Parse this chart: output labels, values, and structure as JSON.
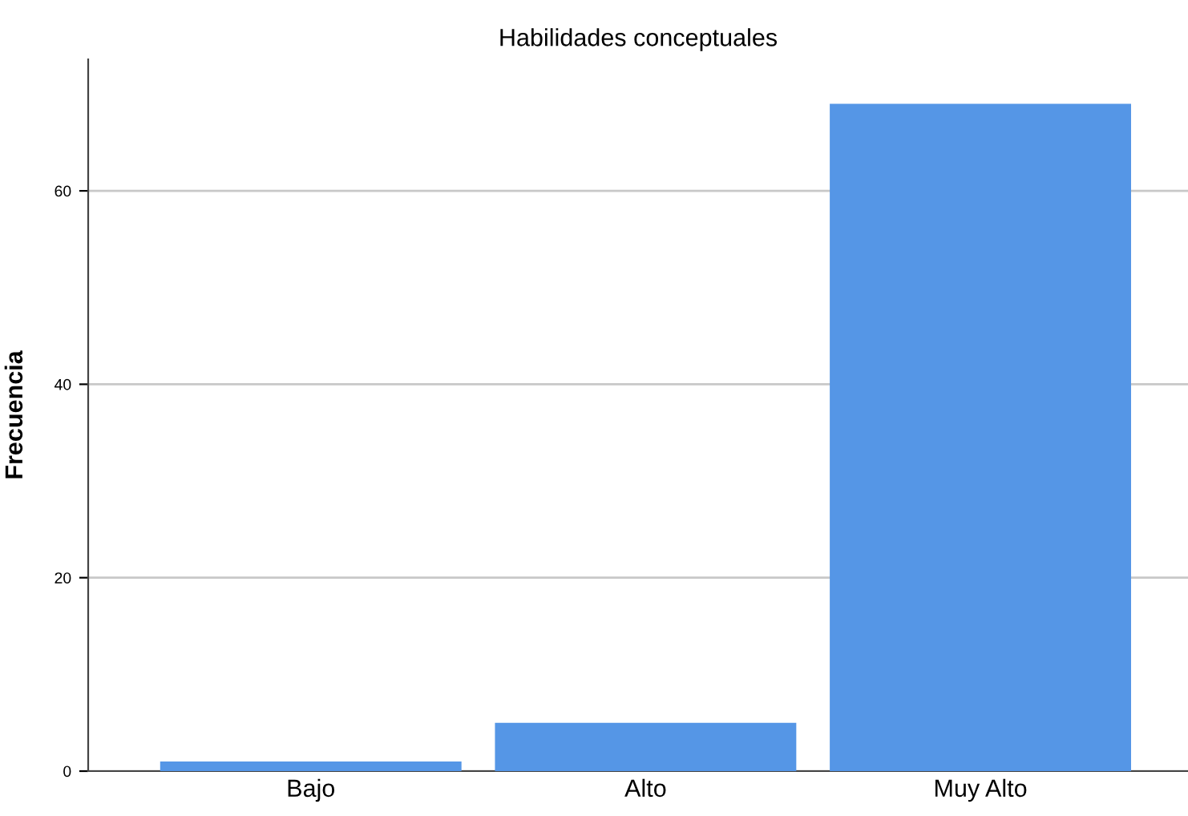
{
  "chart_data": {
    "type": "bar",
    "title": "Habilidades conceptuales",
    "ylabel": "Frecuencia",
    "categories": [
      "Bajo",
      "Alto",
      "Muy Alto"
    ],
    "values": [
      1,
      5,
      69
    ],
    "color": "#5596e6",
    "ylim": [
      0,
      73.6
    ],
    "yticks": [
      0,
      20,
      40,
      60
    ],
    "grid": "y"
  }
}
